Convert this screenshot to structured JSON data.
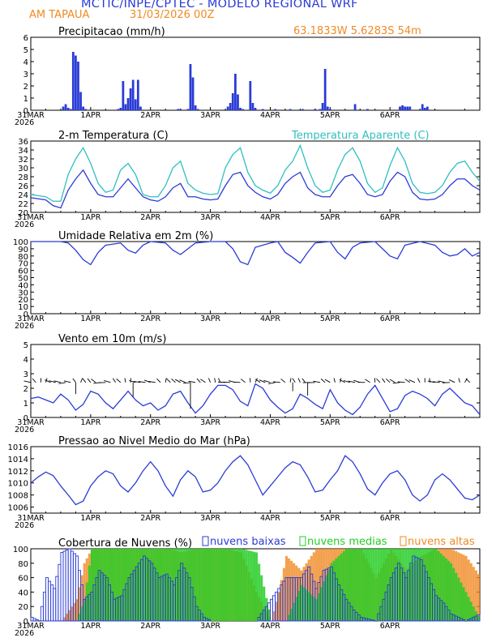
{
  "header": {
    "title": "MCTIC/INPE/CPTEC - MODELO REGIONAL WRF",
    "location": "AM TAPAUA",
    "run": "31/03/2026 00Z",
    "coords": "63.1833W 5.6283S 54m",
    "title_color": "#2a3bd6",
    "orange": "#f08a24"
  },
  "axis_labels": {
    "x_ticks": [
      "31MAR",
      "1APR",
      "2APR",
      "3APR",
      "4APR",
      "5APR",
      "6APR"
    ],
    "year": "2026"
  },
  "panels": {
    "precip": {
      "title": "Precipitacao (mm/h)",
      "yticks": [
        "0",
        "1",
        "2",
        "3",
        "4",
        "5",
        "6"
      ],
      "chart_data": {
        "type": "bar",
        "ylim": [
          0,
          6
        ],
        "x_unit": "hours since 31MAR 00Z",
        "values_approx": [
          [
            13,
            0.3
          ],
          [
            14,
            0.5
          ],
          [
            15,
            0.2
          ],
          [
            16,
            0.1
          ],
          [
            17,
            4.8
          ],
          [
            18,
            4.5
          ],
          [
            19,
            4.0
          ],
          [
            20,
            1.5
          ],
          [
            21,
            0.3
          ],
          [
            22,
            0.1
          ],
          [
            35,
            0.1
          ],
          [
            36,
            0.2
          ],
          [
            37,
            2.4
          ],
          [
            38,
            0.5
          ],
          [
            39,
            1.0
          ],
          [
            40,
            1.8
          ],
          [
            41,
            2.5
          ],
          [
            42,
            0.9
          ],
          [
            43,
            2.5
          ],
          [
            44,
            0.3
          ],
          [
            59,
            0.1
          ],
          [
            60,
            0.1
          ],
          [
            63,
            0.1
          ],
          [
            64,
            3.8
          ],
          [
            65,
            2.7
          ],
          [
            66,
            0.4
          ],
          [
            67,
            0.1
          ],
          [
            79,
            0.3
          ],
          [
            80,
            0.6
          ],
          [
            81,
            1.4
          ],
          [
            82,
            3.0
          ],
          [
            83,
            1.3
          ],
          [
            84,
            0.2
          ],
          [
            85,
            0.1
          ],
          [
            88,
            2.4
          ],
          [
            89,
            0.6
          ],
          [
            90,
            0.2
          ],
          [
            93,
            0.1
          ],
          [
            98,
            0.1
          ],
          [
            104,
            0.1
          ],
          [
            109,
            0.1
          ],
          [
            114,
            0.1
          ],
          [
            116,
            0.1
          ],
          [
            117,
            0.6
          ],
          [
            118,
            3.4
          ],
          [
            119,
            0.3
          ],
          [
            120,
            0.1
          ],
          [
            130,
            0.5
          ],
          [
            135,
            0.1
          ],
          [
            148,
            0.3
          ],
          [
            149,
            0.4
          ],
          [
            150,
            0.3
          ],
          [
            151,
            0.3
          ],
          [
            152,
            0.3
          ],
          [
            157,
            0.5
          ],
          [
            158,
            0.2
          ],
          [
            159,
            0.3
          ]
        ]
      }
    },
    "temp": {
      "title": "2-m Temperatura (C)",
      "legend2": "Temperatura Aparente (C)",
      "yticks": [
        "20",
        "22",
        "24",
        "26",
        "28",
        "30",
        "32",
        "34",
        "36"
      ],
      "colors": {
        "temp": "#2a3bd6",
        "apparent": "#2fbfbf"
      },
      "chart_data": {
        "type": "line",
        "ylim": [
          20,
          36
        ],
        "x": [
          0,
          6,
          9,
          12,
          15,
          18,
          21,
          24,
          27,
          30,
          33,
          36,
          39,
          42,
          45,
          48,
          51,
          54,
          57,
          60,
          63,
          66,
          69,
          72,
          75,
          78,
          81,
          84,
          87,
          90,
          93,
          96,
          99,
          102,
          105,
          108,
          111,
          114,
          117,
          120,
          123,
          126,
          129,
          132,
          135,
          138,
          141,
          144,
          147,
          150,
          153,
          156,
          159,
          162,
          165,
          168,
          171,
          174,
          177,
          180
        ],
        "series": [
          {
            "name": "2-m Temperatura (C)",
            "values": [
              23.3,
              22.8,
              21.5,
              21.0,
              25.0,
              27.5,
              29.5,
              26.5,
              24.0,
              23.5,
              23.5,
              25.5,
              27.5,
              25.5,
              23.5,
              22.8,
              22.5,
              23.5,
              25.5,
              26.5,
              23.5,
              23.5,
              23.0,
              22.8,
              23.0,
              26.0,
              28.5,
              29.0,
              26.0,
              24.5,
              23.5,
              23.0,
              24.0,
              26.5,
              28.0,
              29.0,
              25.5,
              24.0,
              23.5,
              23.5,
              26.0,
              28.0,
              28.5,
              26.5,
              24.0,
              23.5,
              24.0,
              27.0,
              29.0,
              28.0,
              24.5,
              23.0,
              22.8,
              23.0,
              24.0,
              26.0,
              27.5,
              27.5,
              26.0,
              25.0
            ]
          },
          {
            "name": "Temperatura Aparente (C)",
            "values": [
              24.0,
              23.5,
              22.5,
              22.5,
              28.5,
              32.0,
              34.5,
              31.0,
              26.5,
              24.5,
              25.0,
              29.5,
              31.0,
              28.5,
              24.0,
              23.5,
              23.5,
              26.0,
              30.0,
              31.5,
              26.5,
              25.0,
              24.3,
              24.0,
              24.2,
              30.0,
              33.0,
              34.5,
              29.0,
              26.0,
              25.0,
              24.3,
              26.0,
              29.5,
              31.5,
              35.0,
              30.0,
              26.0,
              24.5,
              25.0,
              29.5,
              33.0,
              34.5,
              31.5,
              26.5,
              24.5,
              25.5,
              30.5,
              34.5,
              31.5,
              26.5,
              24.5,
              24.2,
              24.5,
              26.0,
              29.0,
              31.0,
              31.5,
              29.0,
              27.0
            ]
          }
        ]
      }
    },
    "rh": {
      "title": "Umidade Relativa em 2m (%)",
      "yticks": [
        "0",
        "10",
        "20",
        "30",
        "40",
        "50",
        "60",
        "70",
        "80",
        "90",
        "100"
      ],
      "chart_data": {
        "type": "line",
        "ylim": [
          0,
          100
        ],
        "x": [
          0,
          6,
          12,
          15,
          18,
          21,
          24,
          27,
          30,
          36,
          39,
          42,
          45,
          48,
          54,
          57,
          60,
          63,
          66,
          72,
          78,
          81,
          84,
          87,
          90,
          96,
          99,
          102,
          105,
          108,
          111,
          114,
          120,
          123,
          126,
          129,
          132,
          138,
          141,
          144,
          147,
          150,
          156,
          162,
          165,
          168,
          171,
          174,
          177,
          180
        ],
        "values": [
          100,
          100,
          100,
          98,
          88,
          75,
          68,
          85,
          95,
          98,
          88,
          84,
          95,
          100,
          98,
          88,
          82,
          90,
          98,
          100,
          100,
          90,
          72,
          68,
          92,
          98,
          100,
          85,
          78,
          70,
          85,
          98,
          100,
          85,
          76,
          92,
          98,
          100,
          90,
          80,
          76,
          95,
          100,
          95,
          85,
          80,
          82,
          90,
          80,
          85
        ]
      }
    },
    "wind": {
      "title": "Vento em 10m (m/s)",
      "yticks": [
        "0",
        "1",
        "2",
        "3",
        "4",
        "5"
      ],
      "chart_data": {
        "type": "line",
        "ylim": [
          0,
          5
        ],
        "x": [
          0,
          3,
          6,
          9,
          12,
          15,
          18,
          21,
          24,
          27,
          30,
          33,
          36,
          39,
          42,
          45,
          48,
          51,
          54,
          57,
          60,
          63,
          66,
          69,
          72,
          75,
          78,
          81,
          84,
          87,
          90,
          93,
          96,
          99,
          102,
          105,
          108,
          111,
          114,
          117,
          120,
          123,
          126,
          129,
          132,
          135,
          138,
          141,
          144,
          147,
          150,
          153,
          156,
          159,
          162,
          165,
          168,
          171,
          174,
          177,
          180
        ],
        "values": [
          1.3,
          1.4,
          1.2,
          1.0,
          1.6,
          1.2,
          0.5,
          0.9,
          1.8,
          1.6,
          1.0,
          0.6,
          1.2,
          1.8,
          1.2,
          0.8,
          1.0,
          0.5,
          0.8,
          1.6,
          1.8,
          1.0,
          0.3,
          0.8,
          1.6,
          2.2,
          2.2,
          1.9,
          1.1,
          0.8,
          2.3,
          2.0,
          1.2,
          0.7,
          0.3,
          0.6,
          1.6,
          1.3,
          0.9,
          0.6,
          1.9,
          1.0,
          0.5,
          0.2,
          0.7,
          1.6,
          2.2,
          1.3,
          0.4,
          0.6,
          1.5,
          1.8,
          1.6,
          1.3,
          0.8,
          1.6,
          2.0,
          1.5,
          1.0,
          0.8,
          0.2
        ]
      }
    },
    "pressure": {
      "title": "Pressao ao Nivel Medio do Mar (hPa)",
      "yticks": [
        "1006",
        "1008",
        "1010",
        "1012",
        "1014",
        "1016"
      ],
      "chart_data": {
        "type": "line",
        "ylim": [
          1005,
          1016
        ],
        "x": [
          0,
          3,
          6,
          9,
          12,
          15,
          18,
          21,
          24,
          27,
          30,
          33,
          36,
          39,
          42,
          45,
          48,
          51,
          54,
          57,
          60,
          63,
          66,
          69,
          72,
          75,
          78,
          81,
          84,
          87,
          90,
          93,
          96,
          99,
          102,
          105,
          108,
          111,
          114,
          117,
          120,
          123,
          126,
          129,
          132,
          135,
          138,
          141,
          144,
          147,
          150,
          153,
          156,
          159,
          162,
          165,
          168,
          171,
          174,
          177,
          180
        ],
        "values": [
          1010.0,
          1011.0,
          1011.8,
          1011.2,
          1009.5,
          1008.0,
          1006.4,
          1007.0,
          1009.5,
          1011.0,
          1012.0,
          1011.5,
          1009.5,
          1008.5,
          1010.0,
          1012.0,
          1013.5,
          1012.0,
          1009.5,
          1007.8,
          1010.5,
          1012.0,
          1011.0,
          1008.5,
          1008.8,
          1010.0,
          1012.0,
          1013.5,
          1014.5,
          1013.0,
          1010.5,
          1008.0,
          1009.5,
          1011.0,
          1012.5,
          1013.5,
          1013.0,
          1011.0,
          1008.5,
          1008.8,
          1010.5,
          1012.0,
          1014.5,
          1013.5,
          1011.5,
          1009.0,
          1008.0,
          1010.0,
          1011.5,
          1012.0,
          1010.5,
          1008.0,
          1007.0,
          1008.0,
          1010.5,
          1011.5,
          1010.5,
          1009.0,
          1007.5,
          1007.2,
          1008.0
        ]
      }
    },
    "clouds": {
      "title": "Cobertura de Nuvens (%)",
      "legend": [
        "nuvens baixas",
        "nuvens medias",
        "nuvens altas"
      ],
      "yticks": [
        "0",
        "20",
        "40",
        "60",
        "80",
        "100"
      ],
      "colors": {
        "low": "#2a3bd6",
        "mid": "#26cc26",
        "high": "#f08a24"
      },
      "chart_data": {
        "type": "bar",
        "ylim": [
          0,
          100
        ],
        "series": [
          {
            "name": "nuvens baixas",
            "x": [
              0,
              3,
              6,
              9,
              12,
              15,
              18,
              21,
              24,
              27,
              30,
              33,
              36,
              39,
              42,
              45,
              48,
              51,
              54,
              57,
              60,
              63,
              66,
              69,
              72,
              78,
              84,
              90,
              96,
              102,
              108,
              111,
              114,
              117,
              120,
              123,
              126,
              129,
              132,
              138,
              144,
              147,
              150,
              153,
              156,
              159,
              162,
              165,
              168,
              171,
              174,
              180
            ],
            "values": [
              5,
              0,
              60,
              45,
              95,
              100,
              90,
              30,
              40,
              70,
              60,
              30,
              35,
              60,
              75,
              90,
              80,
              60,
              65,
              50,
              80,
              60,
              20,
              5,
              0,
              0,
              0,
              0,
              30,
              60,
              60,
              75,
              45,
              70,
              75,
              50,
              30,
              15,
              5,
              0,
              60,
              80,
              60,
              90,
              85,
              60,
              35,
              25,
              10,
              5,
              0,
              10
            ]
          },
          {
            "name": "nuvens medias",
            "x": [
              0,
              6,
              12,
              18,
              21,
              24,
              30,
              36,
              42,
              48,
              54,
              60,
              66,
              72,
              78,
              84,
              90,
              96,
              102,
              108,
              114,
              120,
              126,
              132,
              138,
              144,
              150,
              156,
              162,
              168,
              174,
              180
            ],
            "values": [
              0,
              0,
              0,
              0,
              30,
              100,
              100,
              100,
              100,
              100,
              100,
              100,
              100,
              100,
              100,
              100,
              95,
              0,
              0,
              50,
              30,
              80,
              100,
              100,
              100,
              100,
              100,
              100,
              100,
              80,
              40,
              0
            ]
          },
          {
            "name": "nuvens altas",
            "x": [
              0,
              6,
              12,
              18,
              21,
              24,
              30,
              36,
              42,
              48,
              54,
              60,
              66,
              72,
              78,
              84,
              90,
              96,
              99,
              102,
              108,
              114,
              120,
              126,
              132,
              138,
              144,
              150,
              156,
              162,
              168,
              174,
              180
            ],
            "values": [
              0,
              0,
              0,
              30,
              80,
              100,
              100,
              100,
              100,
              100,
              100,
              95,
              100,
              100,
              100,
              95,
              40,
              0,
              40,
              90,
              70,
              100,
              100,
              100,
              100,
              60,
              100,
              70,
              90,
              100,
              100,
              90,
              60
            ]
          }
        ]
      }
    }
  }
}
